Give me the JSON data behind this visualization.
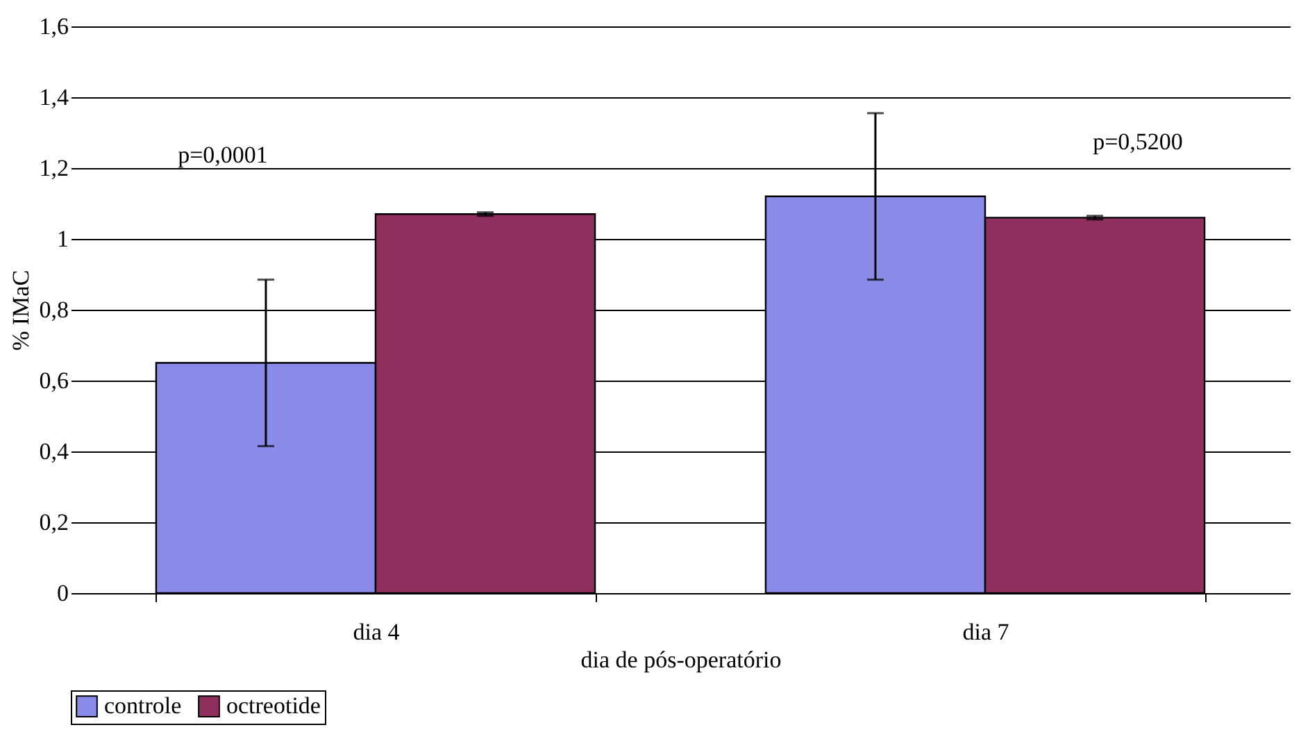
{
  "chart_data": {
    "type": "bar",
    "xlabel": "dia de pós-operatório",
    "ylabel": "% IMaC",
    "categories": [
      "dia 4",
      "dia 7"
    ],
    "series": [
      {
        "name": "controle",
        "color": "#8a8ae8",
        "values": [
          0.65,
          1.12
        ],
        "errors": [
          0.235,
          0.235
        ]
      },
      {
        "name": "octreotide",
        "color": "#8e2f5e",
        "values": [
          1.07,
          1.06
        ],
        "errors": [
          0.005,
          0.005
        ]
      }
    ],
    "ylim": [
      0,
      1.6
    ],
    "yticks": [
      0,
      {
        "value": 0.2,
        "label": "0,2"
      },
      {
        "value": 0.4,
        "label": "0,4"
      },
      {
        "value": 0.6,
        "label": "0,6"
      },
      {
        "value": 0.8,
        "label": "0,8"
      },
      1,
      {
        "value": 1.2,
        "label": "1,2"
      },
      {
        "value": 1.4,
        "label": "1,4"
      },
      {
        "value": 1.6,
        "label": "1,6"
      }
    ],
    "grid": "y",
    "legend": "bottom",
    "annotations": [
      "p=0,0001",
      "p=0,5200"
    ]
  }
}
